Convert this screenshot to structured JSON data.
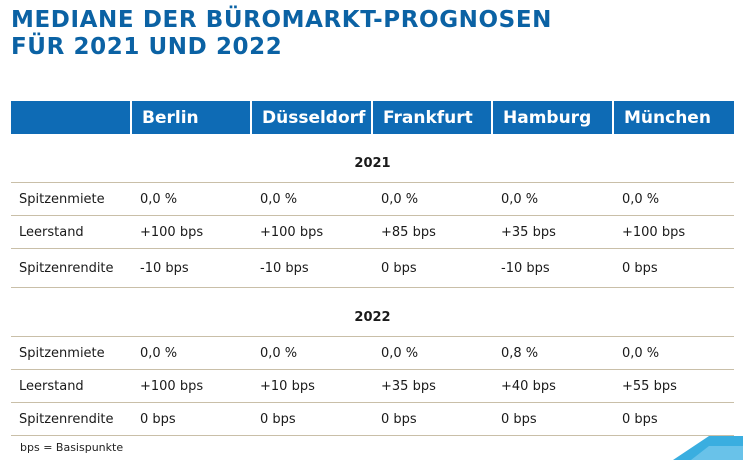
{
  "title": {
    "line1": "MEDIANE DER BÜROMARKT-PROGNOSEN",
    "line2": "FÜR 2021 UND 2022"
  },
  "table": {
    "columns": [
      "",
      "Berlin",
      "Düsseldorf",
      "Frankfurt",
      "Hamburg",
      "München"
    ],
    "sections": [
      {
        "year": "2021",
        "rows": [
          {
            "label": "Spitzenmiete",
            "values": [
              "0,0 %",
              "0,0 %",
              "0,0 %",
              "0,0 %",
              "0,0 %"
            ]
          },
          {
            "label": "Leerstand",
            "values": [
              "+100 bps",
              "+100 bps",
              "+85 bps",
              "+35 bps",
              "+100 bps"
            ]
          },
          {
            "label": "Spitzenrendite",
            "values": [
              "-10 bps",
              "-10 bps",
              "0 bps",
              "-10 bps",
              "0 bps"
            ]
          }
        ]
      },
      {
        "year": "2022",
        "rows": [
          {
            "label": "Spitzenmiete",
            "values": [
              "0,0 %",
              "0,0 %",
              "0,0 %",
              "0,8 %",
              "0,0 %"
            ]
          },
          {
            "label": "Leerstand",
            "values": [
              "+100 bps",
              "+10 bps",
              "+35 bps",
              "+40 bps",
              "+55 bps"
            ]
          },
          {
            "label": "Spitzenrendite",
            "values": [
              "0 bps",
              "0 bps",
              "0 bps",
              "0 bps",
              "0 bps"
            ]
          }
        ]
      }
    ]
  },
  "footnote": "bps = Basispunkte",
  "colors": {
    "title": "#0b62a4",
    "header_bg": "#0e6bb5",
    "rule": "#c9bfa8",
    "deco": "#3aaee0"
  }
}
